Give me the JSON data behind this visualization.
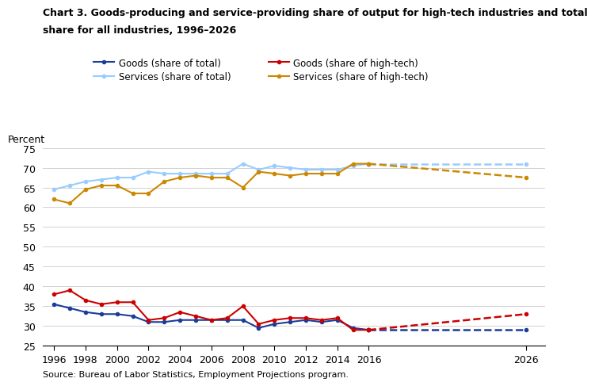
{
  "title_line1": "Chart 3. Goods-producing and service-providing share of output for high-tech industries and total",
  "title_line2": "share for all industries, 1996–2026",
  "ylabel": "Percent",
  "source": "Source: Bureau of Labor Statistics, Employment Projections program.",
  "years_actual": [
    1996,
    1997,
    1998,
    1999,
    2000,
    2001,
    2002,
    2003,
    2004,
    2005,
    2006,
    2007,
    2008,
    2009,
    2010,
    2011,
    2012,
    2013,
    2014,
    2015,
    2016
  ],
  "years_projected": [
    2016,
    2026
  ],
  "goods_total_actual": [
    35.5,
    34.5,
    33.5,
    33.0,
    33.0,
    32.5,
    31.0,
    31.0,
    31.5,
    31.5,
    31.5,
    31.5,
    31.5,
    29.5,
    30.5,
    31.0,
    31.5,
    31.0,
    31.5,
    29.5,
    29.0
  ],
  "goods_total_projected": [
    29.0,
    29.0
  ],
  "services_total_actual": [
    64.5,
    65.5,
    66.5,
    67.0,
    67.5,
    67.5,
    69.0,
    68.5,
    68.5,
    68.5,
    68.5,
    68.5,
    71.0,
    69.5,
    70.5,
    70.0,
    69.5,
    69.5,
    69.5,
    70.5,
    71.0
  ],
  "services_total_projected": [
    71.0,
    71.0
  ],
  "goods_hightech_actual": [
    38.0,
    39.0,
    36.5,
    35.5,
    36.0,
    36.0,
    31.5,
    32.0,
    33.5,
    32.5,
    31.5,
    32.0,
    35.0,
    30.5,
    31.5,
    32.0,
    32.0,
    31.5,
    32.0,
    29.0,
    29.0
  ],
  "goods_hightech_projected": [
    29.0,
    33.0
  ],
  "services_hightech_actual": [
    62.0,
    61.0,
    64.5,
    65.5,
    65.5,
    63.5,
    63.5,
    66.5,
    67.5,
    68.0,
    67.5,
    67.5,
    65.0,
    69.0,
    68.5,
    68.0,
    68.5,
    68.5,
    68.5,
    71.0,
    71.0
  ],
  "services_hightech_projected": [
    71.0,
    67.5
  ],
  "color_goods_total": "#1a3d99",
  "color_services_total": "#99ccff",
  "color_goods_hightech": "#cc0000",
  "color_services_hightech": "#cc8800",
  "ylim": [
    25,
    75
  ],
  "yticks": [
    25,
    30,
    35,
    40,
    45,
    50,
    55,
    60,
    65,
    70,
    75
  ],
  "xticks": [
    1996,
    1998,
    2000,
    2002,
    2004,
    2006,
    2008,
    2010,
    2012,
    2014,
    2016,
    2026
  ],
  "xlim": [
    1995.3,
    2027.2
  ]
}
